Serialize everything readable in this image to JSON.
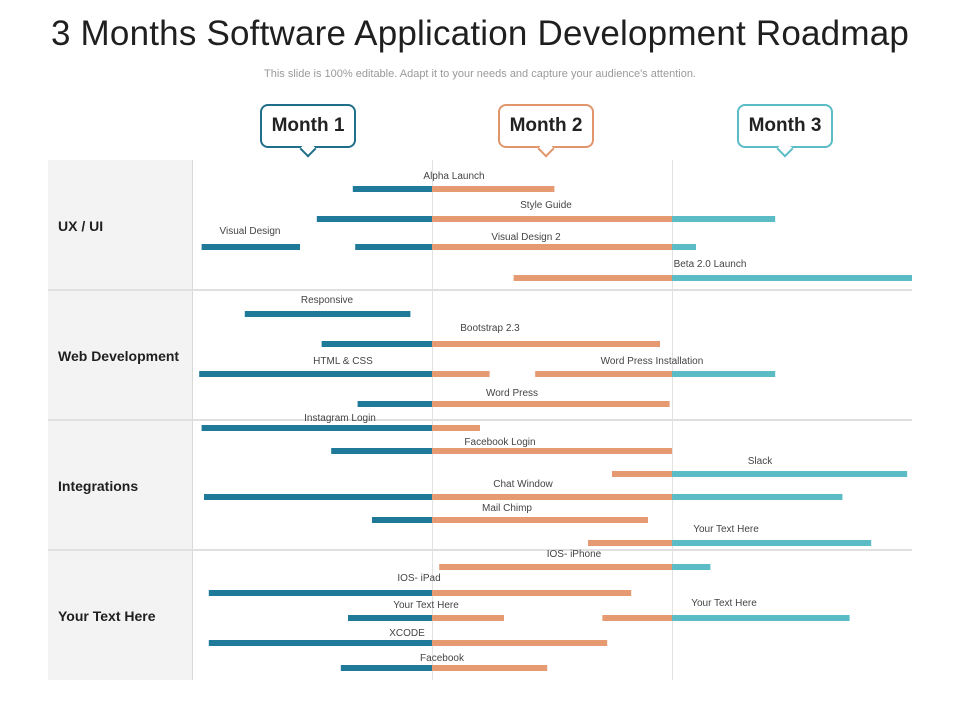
{
  "title": "3 Months Software Application Development Roadmap",
  "subtitle": "This slide is 100% editable. Adapt it to your needs and capture your audience's attention.",
  "colors": {
    "month1": "#1f7a99",
    "month2": "#e59a72",
    "month3": "#5bbcc6"
  },
  "months": [
    {
      "label": "Month 1",
      "color": "#1f6f8b"
    },
    {
      "label": "Month 2",
      "color": "#e0956a"
    },
    {
      "label": "Month 3",
      "color": "#5bbcc6"
    }
  ],
  "sections": [
    {
      "label": "UX / UI"
    },
    {
      "label": "Web Development"
    },
    {
      "label": "Integrations"
    },
    {
      "label": "Your Text Here"
    }
  ],
  "tasks": [
    {
      "label": "Alpha Launch",
      "start": 0.67,
      "end": 1.51
    },
    {
      "label": "Style Guide",
      "start": 0.52,
      "end": 2.43
    },
    {
      "label": "Visual Design",
      "start": 0.04,
      "end": 0.45
    },
    {
      "label": "",
      "start": 0.68,
      "end": 1.0
    },
    {
      "label": "Visual Design 2",
      "start": 1.0,
      "end": 2.1
    },
    {
      "label": "Beta 2.0 Launch",
      "start": 1.34,
      "end": 3.0
    },
    {
      "label": "Responsive",
      "start": 0.22,
      "end": 0.91
    },
    {
      "label": "Bootstrap 2.3",
      "start": 0.54,
      "end": 1.95
    },
    {
      "label": "HTML & CSS",
      "start": 0.03,
      "end": 1.24
    },
    {
      "label": "Word Press Installation",
      "start": 1.43,
      "end": 2.43
    },
    {
      "label": "Word Press",
      "start": 0.69,
      "end": 1.99
    },
    {
      "label": "Instagram Login",
      "start": 0.04,
      "end": 1.2
    },
    {
      "label": "Facebook Login",
      "start": 0.58,
      "end": 2.0
    },
    {
      "label": "Slack",
      "start": 1.75,
      "end": 2.98
    },
    {
      "label": "Chat Window",
      "start": 0.05,
      "end": 2.71
    },
    {
      "label": "Mail Chimp",
      "start": 0.75,
      "end": 1.9
    },
    {
      "label": "Your Text Here",
      "start": 1.65,
      "end": 2.83
    },
    {
      "label": "IOS- iPhone",
      "start": 1.03,
      "end": 2.16
    },
    {
      "label": "IOS- iPad",
      "start": 0.07,
      "end": 1.83
    },
    {
      "label": "Your Text Here",
      "start": 0.65,
      "end": 1.3
    },
    {
      "label": "Your Text Here",
      "start": 1.71,
      "end": 2.74
    },
    {
      "label": "XCODE",
      "start": 0.07,
      "end": 1.73
    },
    {
      "label": "Facebook",
      "start": 0.62,
      "end": 1.48
    }
  ]
}
